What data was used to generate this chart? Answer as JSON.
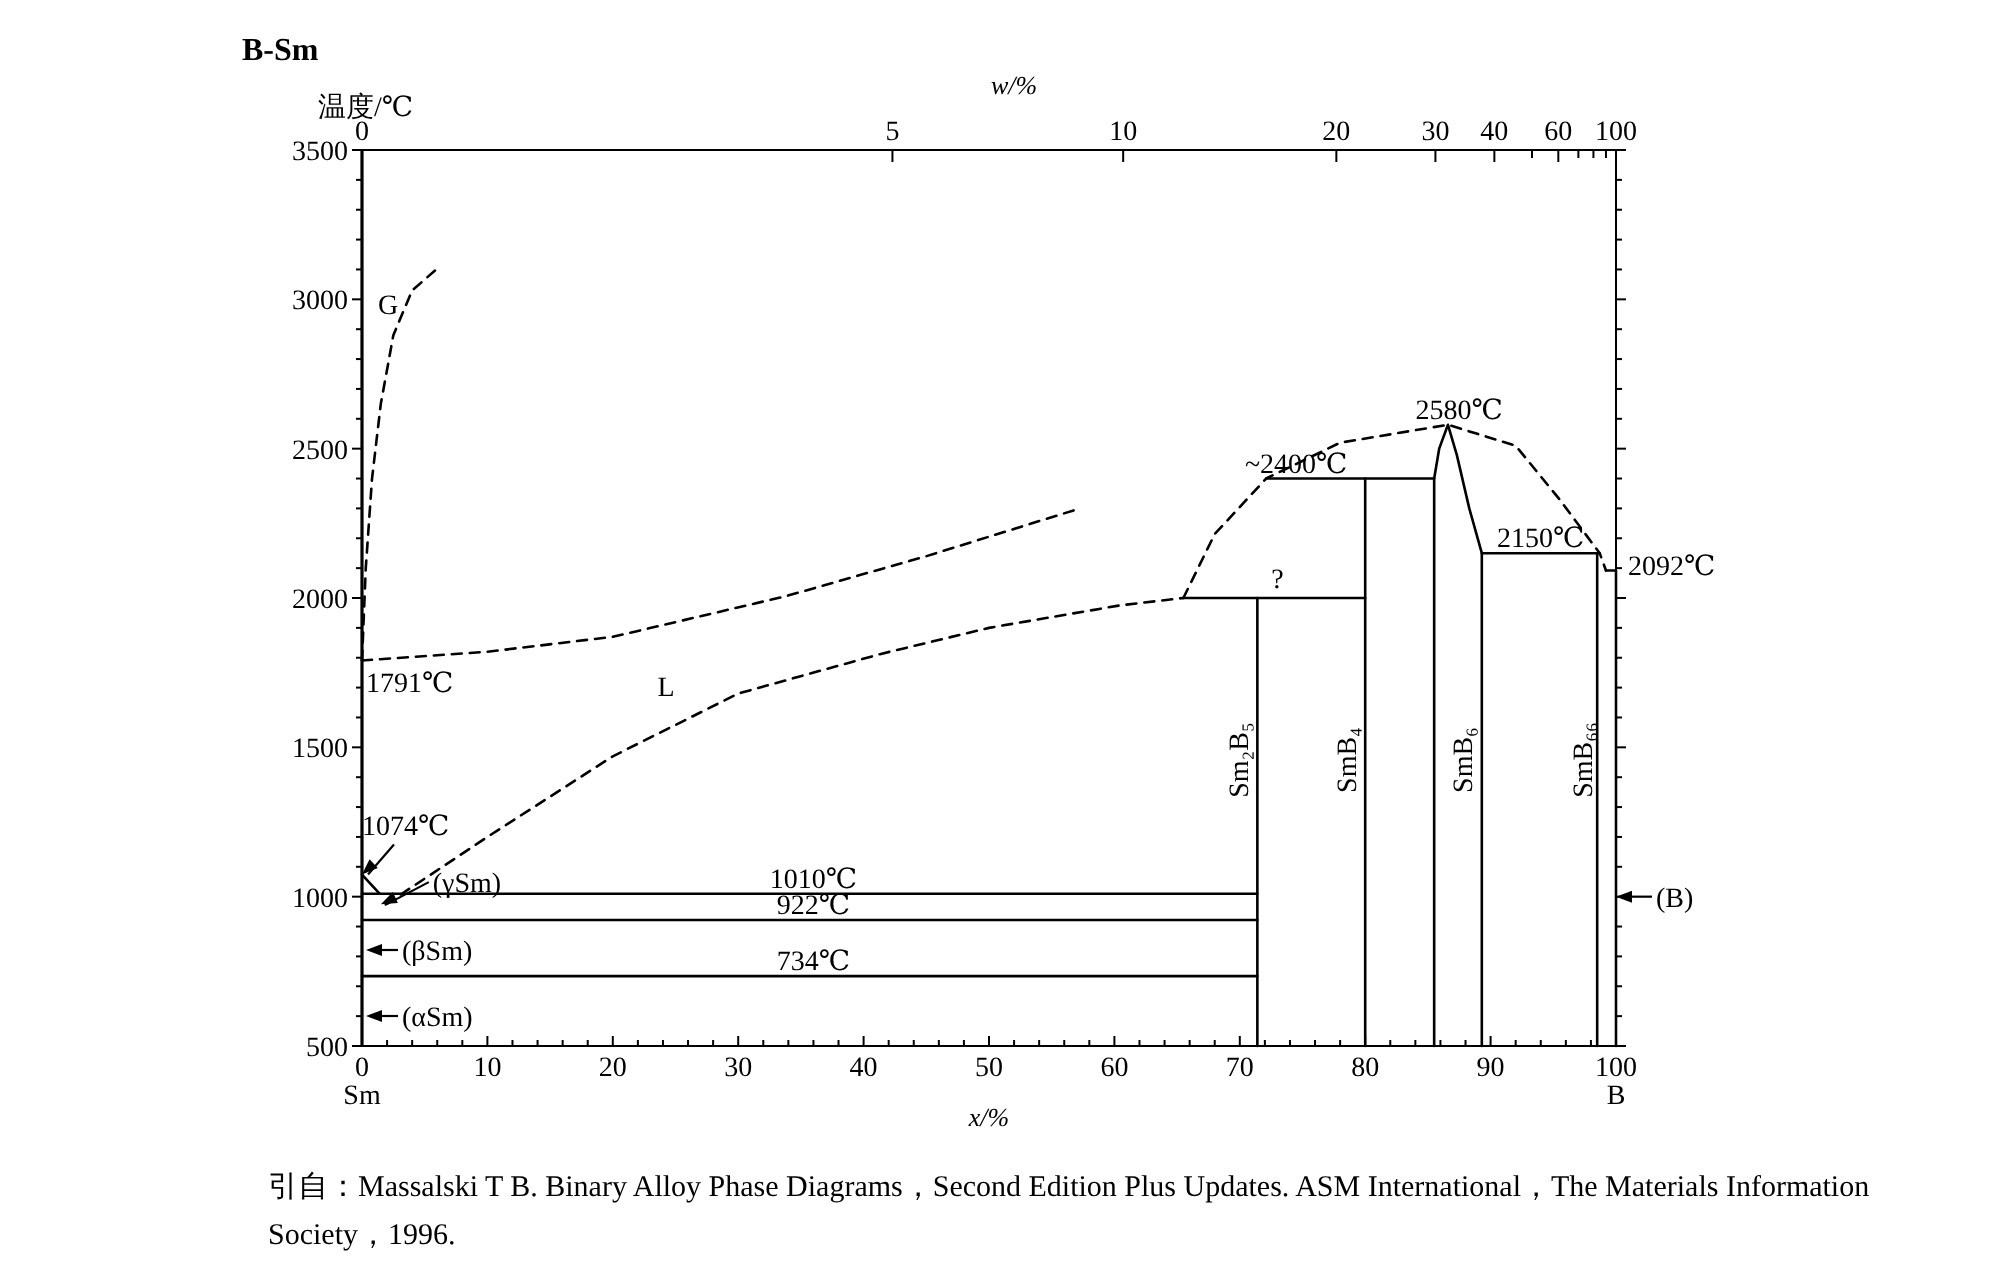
{
  "chart_data": {
    "type": "line",
    "title": "B-Sm",
    "ylabel": "温度/℃",
    "xlabel": "x/%",
    "x2label": "w/%",
    "xlim": [
      0,
      100
    ],
    "ylim": [
      500,
      3500
    ],
    "xticks": [
      0,
      {
        "value": 2,
        "label": null
      },
      {
        "value": 4,
        "label": null
      },
      {
        "value": 6,
        "label": null
      },
      {
        "value": 8,
        "label": null
      },
      10,
      {
        "value": 12,
        "label": null
      },
      {
        "value": 14,
        "label": null
      },
      {
        "value": 16,
        "label": null
      },
      {
        "value": 18,
        "label": null
      },
      20,
      {
        "value": 22,
        "label": null
      },
      {
        "value": 24,
        "label": null
      },
      {
        "value": 26,
        "label": null
      },
      {
        "value": 28,
        "label": null
      },
      30,
      {
        "value": 32,
        "label": null
      },
      {
        "value": 34,
        "label": null
      },
      {
        "value": 36,
        "label": null
      },
      {
        "value": 38,
        "label": null
      },
      40,
      {
        "value": 42,
        "label": null
      },
      {
        "value": 44,
        "label": null
      },
      {
        "value": 46,
        "label": null
      },
      {
        "value": 48,
        "label": null
      },
      50,
      {
        "value": 52,
        "label": null
      },
      {
        "value": 54,
        "label": null
      },
      {
        "value": 56,
        "label": null
      },
      {
        "value": 58,
        "label": null
      },
      60,
      {
        "value": 62,
        "label": null
      },
      {
        "value": 64,
        "label": null
      },
      {
        "value": 66,
        "label": null
      },
      {
        "value": 68,
        "label": null
      },
      70,
      {
        "value": 72,
        "label": null
      },
      {
        "value": 74,
        "label": null
      },
      {
        "value": 76,
        "label": null
      },
      {
        "value": 78,
        "label": null
      },
      80,
      {
        "value": 82,
        "label": null
      },
      {
        "value": 84,
        "label": null
      },
      {
        "value": 86,
        "label": null
      },
      {
        "value": 88,
        "label": null
      },
      90,
      {
        "value": 92,
        "label": null
      },
      {
        "value": 94,
        "label": null
      },
      {
        "value": 96,
        "label": null
      },
      {
        "value": 98,
        "label": null
      },
      100
    ],
    "yticks": [
      500,
      {
        "value": 600,
        "label": null
      },
      {
        "value": 700,
        "label": null
      },
      {
        "value": 800,
        "label": null
      },
      {
        "value": 900,
        "label": null
      },
      1000,
      {
        "value": 1100,
        "label": null
      },
      {
        "value": 1200,
        "label": null
      },
      {
        "value": 1300,
        "label": null
      },
      {
        "value": 1400,
        "label": null
      },
      1500,
      {
        "value": 1600,
        "label": null
      },
      {
        "value": 1700,
        "label": null
      },
      {
        "value": 1800,
        "label": null
      },
      {
        "value": 1900,
        "label": null
      },
      2000,
      {
        "value": 2100,
        "label": null
      },
      {
        "value": 2200,
        "label": null
      },
      {
        "value": 2300,
        "label": null
      },
      {
        "value": 2400,
        "label": null
      },
      2500,
      {
        "value": 2600,
        "label": null
      },
      {
        "value": 2700,
        "label": null
      },
      {
        "value": 2800,
        "label": null
      },
      {
        "value": 2900,
        "label": null
      },
      3000,
      {
        "value": 3100,
        "label": null
      },
      {
        "value": 3200,
        "label": null
      },
      {
        "value": 3300,
        "label": null
      },
      {
        "value": 3400,
        "label": null
      },
      3500
    ],
    "series": [
      {
        "x": [
          0,
          0.3,
          0.8,
          1.5,
          2.5,
          4,
          6.2
        ],
        "values": [
          1791,
          2100,
          2400,
          2650,
          2880,
          3030,
          3110
        ],
        "color": "#000000",
        "line_style": "dashed"
      },
      {
        "x": [
          0,
          10,
          20,
          33.8,
          45,
          56.8
        ],
        "values": [
          1791,
          1820,
          1870,
          2006,
          2140,
          2294
        ],
        "color": "#000000",
        "line_style": "dashed"
      },
      {
        "x": [
          1.9,
          10,
          20,
          30,
          41.3,
          50,
          60.4,
          65.5
        ],
        "values": [
          974,
          1200,
          1470,
          1680,
          1812,
          1900,
          1975,
          2000
        ],
        "color": "#000000",
        "line_style": "dashed"
      },
      {
        "x": [
          65.5,
          68,
          72.1,
          78,
          86.6,
          92,
          95.5,
          98.7,
          99.2
        ],
        "values": [
          2000,
          2214,
          2400,
          2520,
          2580,
          2510,
          2330,
          2150,
          2092
        ],
        "color": "#000000",
        "line_style": "dashed"
      },
      {
        "x": [
          65.5,
          80
        ],
        "values": [
          2000,
          2000
        ],
        "color": "#000000",
        "line_style": "solid"
      },
      {
        "x": [
          72.1,
          80,
          80
        ],
        "values": [
          2400,
          2400,
          500
        ],
        "color": "#000000",
        "line_style": "solid"
      },
      {
        "x": [
          71.4,
          71.4
        ],
        "values": [
          500,
          2000
        ],
        "color": "#000000",
        "line_style": "solid"
      },
      {
        "x": [
          80,
          85.5
        ],
        "values": [
          2400,
          2400
        ],
        "color": "#000000",
        "line_style": "solid"
      },
      {
        "x": [
          85.5,
          85.5,
          85.9,
          86.6,
          87.3,
          88.3,
          89.3,
          89.3
        ],
        "values": [
          500,
          2400,
          2500,
          2580,
          2480,
          2300,
          2150,
          500
        ],
        "color": "#000000",
        "line_style": "solid"
      },
      {
        "x": [
          89.3,
          98.7
        ],
        "values": [
          2150,
          2150
        ],
        "color": "#000000",
        "line_style": "solid"
      },
      {
        "x": [
          98.5,
          98.5
        ],
        "values": [
          500,
          2150
        ],
        "color": "#000000",
        "line_style": "solid"
      },
      {
        "x": [
          99.2,
          100,
          100
        ],
        "values": [
          2092,
          2092,
          500
        ],
        "color": "#000000",
        "line_style": "solid"
      },
      {
        "x": [
          0,
          71.4
        ],
        "values": [
          1010,
          1010
        ],
        "color": "#000000",
        "line_style": "solid"
      },
      {
        "x": [
          0,
          71.4
        ],
        "values": [
          922,
          922
        ],
        "color": "#000000",
        "line_style": "solid"
      },
      {
        "x": [
          0,
          71.4
        ],
        "values": [
          734,
          734
        ],
        "color": "#000000",
        "line_style": "solid"
      },
      {
        "x": [
          0,
          1.4
        ],
        "values": [
          1074,
          1010
        ],
        "color": "#000000",
        "line_style": "solid"
      }
    ],
    "annotations": [
      "G",
      "L",
      "(βSm)",
      "(αSm)",
      "Sm₂B₅",
      "SmB₄",
      "SmB₆",
      "SmB₆₆",
      "Sm",
      "B",
      "0",
      "5",
      "10",
      "20",
      "30",
      "40",
      "60",
      "100",
      {
        "text": "1791℃",
        "x": 0,
        "y": 1791
      },
      {
        "text": "1074℃",
        "x": 0,
        "y": 1074
      },
      {
        "text": "(γSm)",
        "x": 1.5,
        "y": 975
      },
      {
        "text": "(B)",
        "x": 100,
        "y": 1000
      },
      {
        "text": "1010℃",
        "x": 36,
        "y": 1010
      },
      {
        "text": "922℃",
        "x": 36,
        "y": 922
      },
      {
        "text": "734℃",
        "x": 36,
        "y": 734
      },
      {
        "text": "?",
        "x": 73,
        "y": 2000
      },
      {
        "text": "~2400℃",
        "x": 74.5,
        "y": 2400
      },
      {
        "text": "2580℃",
        "x": 87.5,
        "y": 2580
      },
      {
        "text": "2150℃",
        "x": 94,
        "y": 2150
      },
      {
        "text": "2092℃",
        "x": 100,
        "y": 2092
      },
      "引自：Massalski T B. Binary Alloy Phase Diagrams，Second Edition Plus Updates. ASM International，The Materials Information Society，1996."
    ]
  }
}
